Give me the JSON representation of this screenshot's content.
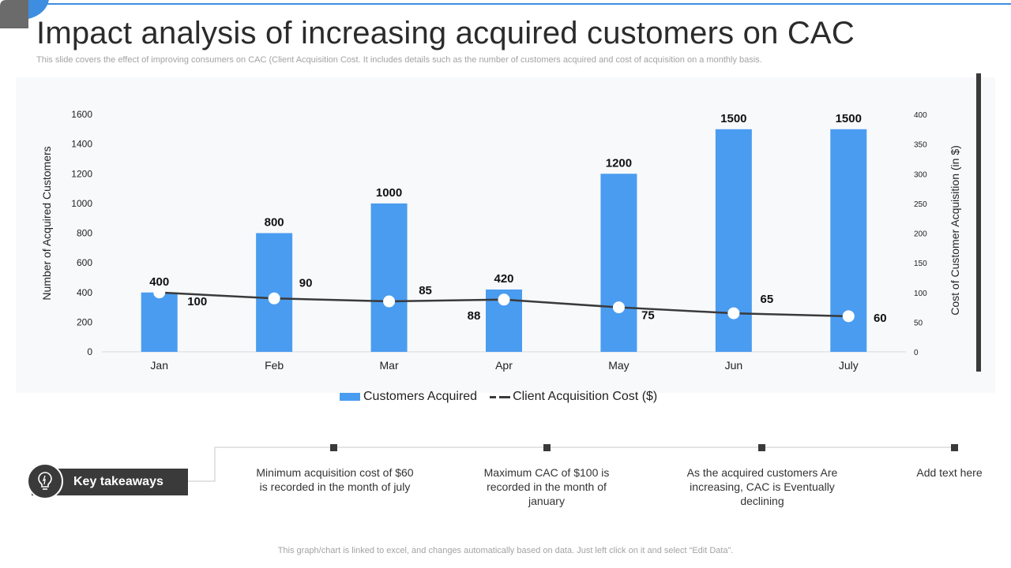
{
  "slide": {
    "title": "Impact analysis of increasing acquired customers on CAC",
    "subtitle": "This slide covers the effect of improving consumers on CAC (Client Acquisition Cost. It includes details such as the number of customers acquired and cost of acquisition on a monthly basis.",
    "footer": "This graph/chart is linked to excel,  and changes automatically based on data. Just left click on it and select “Edit Data”."
  },
  "colors": {
    "bar": "#4a9cf0",
    "line": "#3a3a3a",
    "accent": "#3d8ee0",
    "panel": "#f8f9fb"
  },
  "chart_data": {
    "type": "bar",
    "categories": [
      "Jan",
      "Feb",
      "Mar",
      "Apr",
      "May",
      "Jun",
      "July"
    ],
    "series": [
      {
        "name": "Customers Acquired",
        "type": "bar",
        "axis": "left",
        "values": [
          400,
          800,
          1000,
          420,
          1200,
          1500,
          1500
        ]
      },
      {
        "name": "Client Acquisition Cost ($)",
        "type": "line",
        "axis": "right",
        "values": [
          100,
          90,
          85,
          88,
          75,
          65,
          60
        ]
      }
    ],
    "ylabel": "Number of Acquired Customers",
    "y2label": "Cost of Customer Acquisition (in $)",
    "ylim": [
      0,
      1600
    ],
    "yticks": [
      0,
      200,
      400,
      600,
      800,
      1000,
      1200,
      1400,
      1600
    ],
    "y2lim": [
      0,
      400
    ],
    "y2ticks": [
      0,
      50,
      100,
      150,
      200,
      250,
      300,
      350,
      400
    ],
    "legend": "bottom",
    "grid": false
  },
  "legend": {
    "bar_label": "Customers Acquired",
    "line_label": "Client Acquisition Cost ($)"
  },
  "takeaways": {
    "label": "Key takeaways",
    "icon": "lightbulb-icon",
    "items": [
      "Minimum acquisition cost of $60 is recorded in the month of july",
      "Maximum CAC of $100 is recorded in the month of january",
      "As the acquired customers Are increasing, CAC is Eventually declining",
      "Add text here"
    ]
  }
}
